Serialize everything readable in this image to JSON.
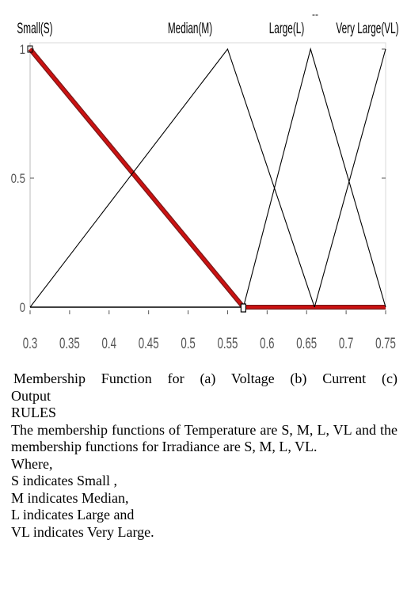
{
  "chart_data": {
    "type": "line",
    "title": "",
    "xlabel": "",
    "ylabel": "",
    "xlim": [
      0.3,
      0.75
    ],
    "ylim": [
      0,
      1
    ],
    "x_ticks": [
      "0.3",
      "0.35",
      "0.4",
      "0.45",
      "0.5",
      "0.55",
      "0.6",
      "0.65",
      "0.7",
      "0.75"
    ],
    "y_ticks": [
      "0",
      "0.5",
      "1"
    ],
    "grid": false,
    "series": [
      {
        "name": "Small(S)",
        "x": [
          0.3,
          0.57,
          0.75
        ],
        "y": [
          1,
          0,
          0
        ],
        "color": "#cc1111",
        "highlighted": true
      },
      {
        "name": "Median(M)",
        "x": [
          0.3,
          0.55,
          0.66
        ],
        "y": [
          0,
          1,
          0
        ],
        "color": "#000000"
      },
      {
        "name": "Large(L)",
        "x": [
          0.57,
          0.655,
          0.75
        ],
        "y": [
          0,
          1,
          0
        ],
        "color": "#000000"
      },
      {
        "name": "Very Large(VL)",
        "x": [
          0.66,
          0.75
        ],
        "y": [
          0,
          1
        ],
        "color": "#000000"
      }
    ],
    "stray_mark": "--"
  },
  "text": {
    "caption": "Membership Function for (a) Voltage (b) Current (c)",
    "caption2": "Output",
    "heading": "RULES",
    "para": "The membership functions of Temperature are S, M, L, VL and the membership functions for Irradiance are S, M, L, VL.",
    "where": "Where,",
    "defs": [
      "S indicates Small ,",
      "M indicates Median,",
      "L indicates Large and",
      "VL indicates Very Large."
    ]
  }
}
